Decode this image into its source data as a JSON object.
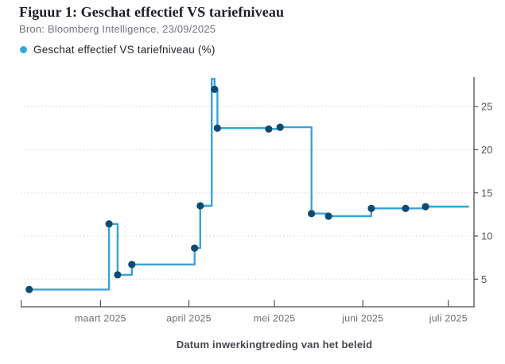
{
  "header": {
    "title": "Figuur 1: Geschat effectief VS tariefniveau",
    "source": "Bron: Bloomberg Intelligence, 23/09/2025"
  },
  "legend": {
    "label": "Geschat effectief VS tariefniveau (%)",
    "dot_color": "#2fa9dd"
  },
  "chart_data": {
    "type": "line",
    "step": "after",
    "title": "Geschat effectief VS tariefniveau",
    "xlabel": "Datum inwerkingtreding van het beleid",
    "ylabel": "",
    "x_domain": [
      "2025-02-01",
      "2025-07-10"
    ],
    "y_domain": [
      1.8,
      28.6
    ],
    "y_ticks": [
      5,
      10,
      15,
      20,
      25
    ],
    "x_ticks": [
      {
        "date": "2025-03-01",
        "label": "maart 2025"
      },
      {
        "date": "2025-04-01",
        "label": "april 2025"
      },
      {
        "date": "2025-05-01",
        "label": "mei 2025"
      },
      {
        "date": "2025-06-01",
        "label": "juni 2025"
      },
      {
        "date": "2025-07-01",
        "label": "juli 2025"
      }
    ],
    "grid": "horizontal-dotted",
    "legend_position": "top-left",
    "colors": {
      "line": "#36a3dc",
      "marker": "#0e4b72",
      "grid": "#d8d8d8",
      "axis": "#4b4b52",
      "y_tick_label": "#55555c",
      "x_tick_label": "#6b6b72"
    },
    "series": [
      {
        "name": "Geschat effectief VS tariefniveau (%)",
        "points": [
          {
            "date": "2025-02-04",
            "value": 3.8,
            "marker": true
          },
          {
            "date": "2025-03-04",
            "value": 11.4,
            "marker": true
          },
          {
            "date": "2025-03-07",
            "value": 5.5,
            "marker": true
          },
          {
            "date": "2025-03-12",
            "value": 6.7,
            "marker": true
          },
          {
            "date": "2025-04-03",
            "value": 8.6,
            "marker": true
          },
          {
            "date": "2025-04-05",
            "value": 13.5,
            "marker": true
          },
          {
            "date": "2025-04-09",
            "value": 28.2,
            "marker": false
          },
          {
            "date": "2025-04-10",
            "value": 27.0,
            "marker": true
          },
          {
            "date": "2025-04-11",
            "value": 22.5,
            "marker": true
          },
          {
            "date": "2025-04-29",
            "value": 22.4,
            "marker": true
          },
          {
            "date": "2025-05-03",
            "value": 22.6,
            "marker": true
          },
          {
            "date": "2025-05-14",
            "value": 12.6,
            "marker": true
          },
          {
            "date": "2025-05-20",
            "value": 12.3,
            "marker": true
          },
          {
            "date": "2025-06-04",
            "value": 13.2,
            "marker": true
          },
          {
            "date": "2025-06-16",
            "value": 13.2,
            "marker": true
          },
          {
            "date": "2025-06-23",
            "value": 13.4,
            "marker": true
          },
          {
            "date": "2025-07-08",
            "value": 13.4,
            "marker": false
          }
        ]
      }
    ]
  }
}
